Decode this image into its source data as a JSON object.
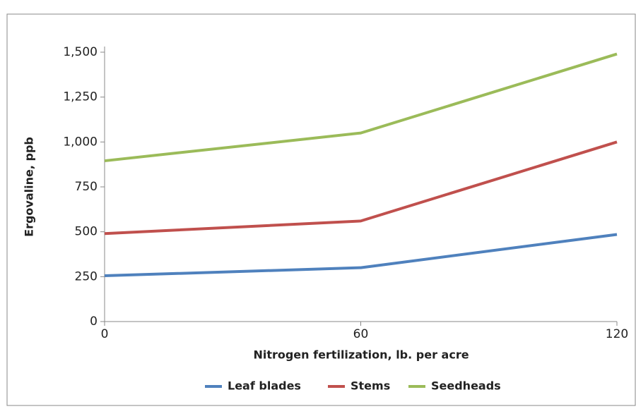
{
  "chart_data": {
    "type": "line",
    "xlabel": "Nitrogen fertilization, lb. per acre",
    "ylabel": "Ergovaline, ppb",
    "x": [
      0,
      60,
      120
    ],
    "xlim": [
      0,
      120
    ],
    "xticks": [
      0,
      60,
      120
    ],
    "ylim": [
      0,
      1500
    ],
    "yticks": [
      0,
      250,
      500,
      750,
      {
        "value": 1000,
        "label": "1,000"
      },
      {
        "value": 1250,
        "label": "1,250"
      },
      {
        "value": 1500,
        "label": "1,500"
      }
    ],
    "grid": false,
    "legend": "bottom",
    "series": [
      {
        "name": "Leaf blades",
        "color": "#4f81bd",
        "values": [
          255,
          300,
          485
        ]
      },
      {
        "name": "Stems",
        "color": "#c0504d",
        "values": [
          490,
          560,
          1000
        ]
      },
      {
        "name": "Seedheads",
        "color": "#9bbb59",
        "values": [
          895,
          1050,
          1490
        ]
      }
    ]
  }
}
